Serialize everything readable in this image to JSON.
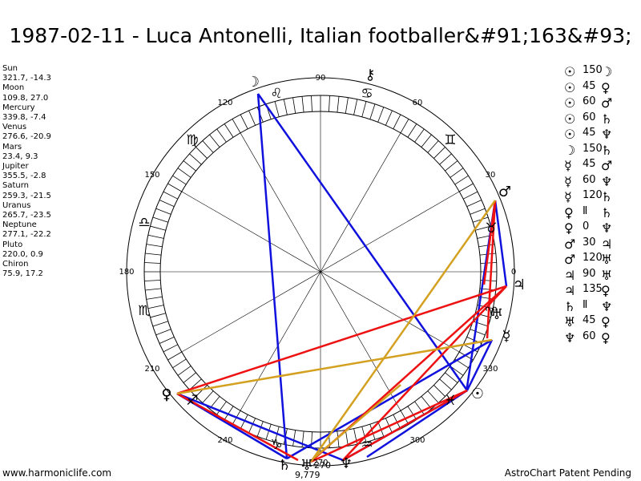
{
  "title": "1987-02-11 - Luca Antonelli, Italian footballer&#91;163&#93;",
  "planets": [
    {
      "name": "Sun",
      "coords": "321.7, -14.3",
      "glyph": "☉"
    },
    {
      "name": "Moon",
      "coords": "109.8, 27.0",
      "glyph": "☽"
    },
    {
      "name": "Mercury",
      "coords": "339.8, -7.4",
      "glyph": "☿"
    },
    {
      "name": "Venus",
      "coords": "276.6, -20.9",
      "glyph": "♀"
    },
    {
      "name": "Mars",
      "coords": "23.4, 9.3",
      "glyph": "♂"
    },
    {
      "name": "Jupiter",
      "coords": "355.5, -2.8",
      "glyph": "♃"
    },
    {
      "name": "Saturn",
      "coords": "259.3, -21.5",
      "glyph": "♄"
    },
    {
      "name": "Uranus",
      "coords": "265.7, -23.5",
      "glyph": "♅"
    },
    {
      "name": "Neptune",
      "coords": "277.1, -22.2",
      "glyph": "♆"
    },
    {
      "name": "Pluto",
      "coords": "220.0, 0.9",
      "glyph": "♀"
    },
    {
      "name": "Chiron",
      "coords": "75.9, 17.2",
      "glyph": "⚷"
    }
  ],
  "aspects": [
    {
      "g1": "☉",
      "deg": "150",
      "g2": "☽"
    },
    {
      "g1": "☉",
      "deg": "45",
      "g2": "♀"
    },
    {
      "g1": "☉",
      "deg": "60",
      "g2": "♂"
    },
    {
      "g1": "☉",
      "deg": "60",
      "g2": "♄"
    },
    {
      "g1": "☉",
      "deg": "45",
      "g2": "♆"
    },
    {
      "g1": "☽",
      "deg": "150",
      "g2": "♄"
    },
    {
      "g1": "☿",
      "deg": "45",
      "g2": "♂"
    },
    {
      "g1": "☿",
      "deg": "60",
      "g2": "♆"
    },
    {
      "g1": "☿",
      "deg": "120",
      "g2": "♄"
    },
    {
      "g1": "♀",
      "deg": "Ⅱ",
      "g2": "♄"
    },
    {
      "g1": "♀",
      "deg": "0",
      "g2": "♆"
    },
    {
      "g1": "♂",
      "deg": "30",
      "g2": "♃"
    },
    {
      "g1": "♂",
      "deg": "120",
      "g2": "♅"
    },
    {
      "g1": "♃",
      "deg": "90",
      "g2": "♅"
    },
    {
      "g1": "♃",
      "deg": "135",
      "g2": "♀"
    },
    {
      "g1": "♄",
      "deg": "Ⅱ",
      "g2": "♆"
    },
    {
      "g1": "♅",
      "deg": "45",
      "g2": "♀"
    },
    {
      "g1": "♆",
      "deg": "60",
      "g2": "♀"
    }
  ],
  "degree_labels": [
    "90",
    "60",
    "30",
    "0",
    "330",
    "300",
    "270",
    "240",
    "210",
    "180",
    "150",
    "120"
  ],
  "zodiac_signs": [
    "♈",
    "♉",
    "♊",
    "♋",
    "♌",
    "♍",
    "♎",
    "♏",
    "♐",
    "♑",
    "♒",
    "♓"
  ],
  "chart_planet_glyphs": [
    {
      "name": "sun",
      "glyph": "☉"
    },
    {
      "name": "moon",
      "glyph": "☽"
    },
    {
      "name": "mercury",
      "glyph": "☿"
    },
    {
      "name": "venus",
      "glyph": "♀"
    },
    {
      "name": "mars",
      "glyph": "♂"
    },
    {
      "name": "jupiter",
      "glyph": "♃"
    },
    {
      "name": "saturn",
      "glyph": "♄"
    },
    {
      "name": "uranus",
      "glyph": "♅"
    },
    {
      "name": "neptune",
      "glyph": "♆"
    },
    {
      "name": "pluto",
      "glyph": "♀"
    },
    {
      "name": "chiron",
      "glyph": "⚷"
    },
    {
      "name": "uranus-inner",
      "glyph": "♅"
    }
  ],
  "chart_labels": {
    "uranus_degree": "270",
    "bottom_value": "9,779"
  },
  "colors": {
    "red": "#ee1111",
    "blue": "#1111dd",
    "gold": "#d4a020"
  },
  "footer": {
    "left": "www.harmoniclife.com",
    "right": "AstroChart Patent Pending"
  }
}
